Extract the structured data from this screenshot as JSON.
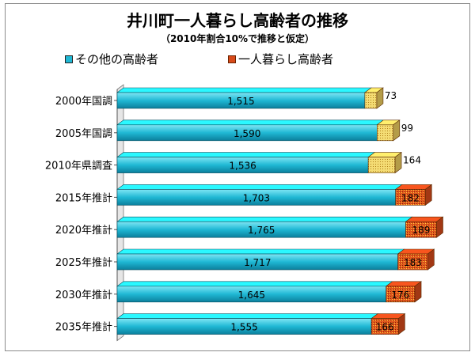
{
  "chart_data": {
    "type": "bar",
    "orientation": "horizontal",
    "stacked": true,
    "title": "井川町一人暮らし高齢者の推移",
    "subtitle": "（2010年割合10%で推移と仮定）",
    "categories": [
      "2000年国調",
      "2005年国調",
      "2010年県調査",
      "2015年推計",
      "2020年推計",
      "2025年推計",
      "2030年推計",
      "2035年推計"
    ],
    "series": [
      {
        "name": "その他の高齢者",
        "values": [
          1515,
          1590,
          1536,
          1703,
          1765,
          1717,
          1645,
          1555
        ],
        "labels": [
          "1,515",
          "1,590",
          "1,536",
          "1,703",
          "1,765",
          "1,717",
          "1,645",
          "1,555"
        ],
        "color": "#1fb8d4"
      },
      {
        "name": "一人暮らし高齢者",
        "values": [
          73,
          99,
          164,
          182,
          189,
          183,
          176,
          166
        ],
        "labels": [
          "73",
          "99",
          "164",
          "182",
          "189",
          "183",
          "176",
          "166"
        ],
        "colors": {
          "measured": "#f0d060",
          "estimated": "#d84a1a"
        }
      }
    ],
    "legend_position": "top",
    "grid": false
  }
}
